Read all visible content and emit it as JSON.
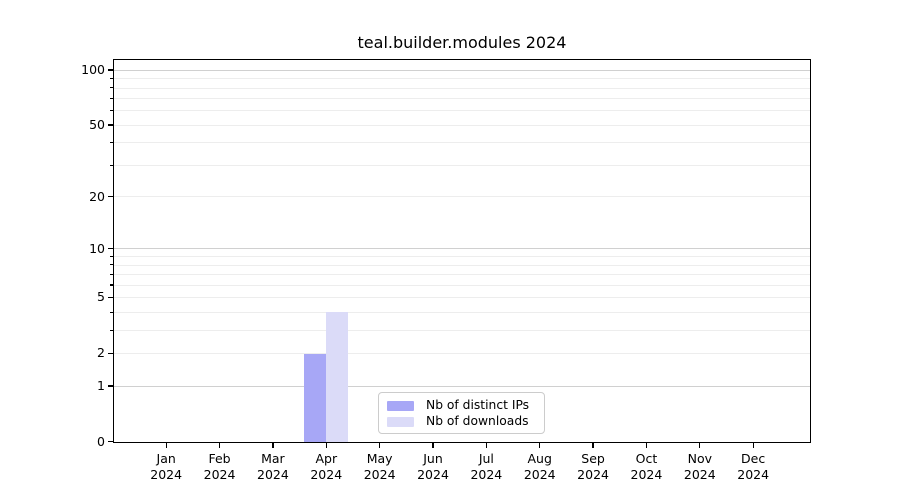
{
  "chart_data": {
    "type": "bar",
    "title": "teal.builder.modules 2024",
    "x": {
      "months": [
        "Jan",
        "Feb",
        "Mar",
        "Apr",
        "May",
        "Jun",
        "Jul",
        "Aug",
        "Sep",
        "Oct",
        "Nov",
        "Dec"
      ],
      "year": "2024"
    },
    "series": [
      {
        "name": "Nb of distinct IPs",
        "color": "#a7a7f6",
        "values": [
          0,
          0,
          0,
          2,
          0,
          0,
          0,
          0,
          0,
          0,
          0,
          0
        ]
      },
      {
        "name": "Nb of downloads",
        "color": "#dbdbf8",
        "values": [
          0,
          0,
          0,
          4,
          0,
          0,
          0,
          0,
          0,
          0,
          0,
          0
        ]
      }
    ],
    "y_axis": {
      "scale": "log1p",
      "tick_values": [
        100,
        50,
        20,
        10,
        5,
        2,
        1,
        0
      ],
      "minor_values": [
        90,
        80,
        70,
        60,
        40,
        30,
        9,
        8,
        7,
        6,
        4,
        3
      ],
      "major_grid_values": [
        100,
        10,
        1
      ],
      "ylim": [
        0,
        114
      ]
    },
    "grid": "horizontal",
    "legend": {
      "position": "lower-center-inside"
    }
  },
  "colors": {
    "background": "#ffffff",
    "axis": "#000000",
    "grid_minor": "#ededed",
    "grid_major": "#d0d0d0"
  }
}
